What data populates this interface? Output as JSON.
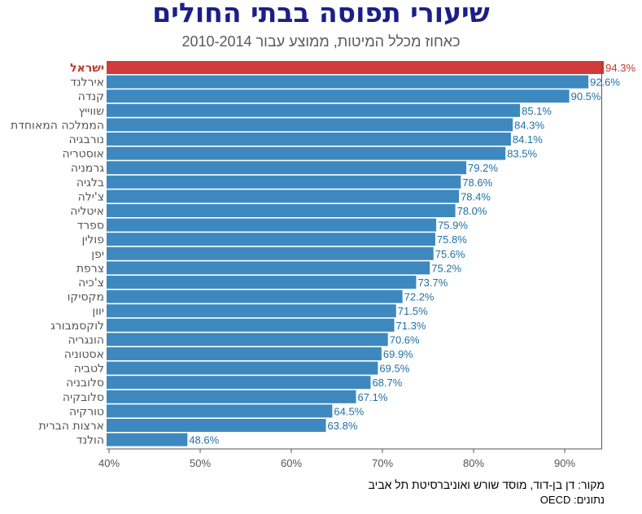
{
  "title": "שיעורי תפוסה בבתי החולים",
  "subtitle": "כאחוז מכלל המיטות, ממוצע עבור 2010-2014",
  "source": "מקור: דן בן-דוד, מוסד שורש ואוניברסיטת תל אביב",
  "data_source": "נתונים: OECD",
  "colors": {
    "highlight": "#d13b3b",
    "bar": "#3d89bf",
    "label": "#1f6fa6",
    "highlight_label": "#c0392b",
    "category": "#555555"
  },
  "chart_data": {
    "type": "bar",
    "orientation": "horizontal",
    "xlim": [
      40,
      94
    ],
    "x_ticks": [
      "40%",
      "50%",
      "60%",
      "70%",
      "80%",
      "90%"
    ],
    "x_tick_values": [
      40,
      50,
      60,
      70,
      80,
      90
    ],
    "grid": false,
    "highlighted_category": "ישראל",
    "categories": [
      "ישראל",
      "אירלנד",
      "קנדה",
      "שווייץ",
      "הממלכה המאוחדת",
      "נורבגיה",
      "אוסטריה",
      "גרמניה",
      "בלגיה",
      "צ'ילה",
      "איטליה",
      "ספרד",
      "פולין",
      "יפן",
      "צרפת",
      "צ'כיה",
      "מקסיקו",
      "יוון",
      "לוקסמבורג",
      "הונגריה",
      "אסטוניה",
      "לטביה",
      "סלובניה",
      "סלובקיה",
      "טורקיה",
      "ארצות הברית",
      "הולנד"
    ],
    "values": [
      94.3,
      92.6,
      90.5,
      85.1,
      84.3,
      84.1,
      83.5,
      79.2,
      78.6,
      78.4,
      78.0,
      75.9,
      75.8,
      75.6,
      75.2,
      73.7,
      72.2,
      71.5,
      71.3,
      70.6,
      69.9,
      69.5,
      68.7,
      67.1,
      64.5,
      63.8,
      48.6
    ],
    "value_labels": [
      "94.3%",
      "92.6%",
      "90.5%",
      "85.1%",
      "84.3%",
      "84.1%",
      "83.5%",
      "79.2%",
      "78.6%",
      "78.4%",
      "78.0%",
      "75.9%",
      "75.8%",
      "75.6%",
      "75.2%",
      "73.7%",
      "72.2%",
      "71.5%",
      "71.3%",
      "70.6%",
      "69.9%",
      "69.5%",
      "68.7%",
      "67.1%",
      "64.5%",
      "63.8%",
      "48.6%"
    ]
  }
}
